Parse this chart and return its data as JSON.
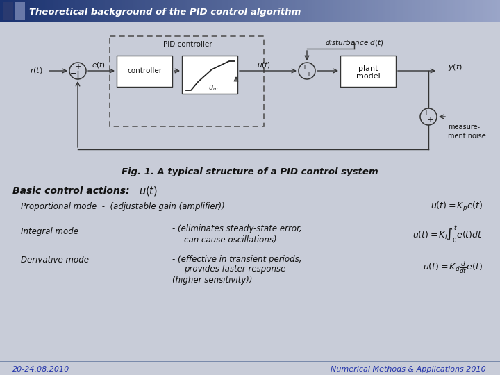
{
  "title": "Theoretical background of the PID control algorithm",
  "title_bg_left": "#1a3270",
  "title_bg_right": "#9aa5c8",
  "title_text_color": "#ffffff",
  "slide_bg": "#c8ccd8",
  "fig_caption": "Fig. 1. A typical structure of a PID control system",
  "footer_left": "20-24.08.2010",
  "footer_right": "Numerical Methods & Applications 2010",
  "dark_sq1": "#2a3a70",
  "dark_sq2": "#6878a8"
}
